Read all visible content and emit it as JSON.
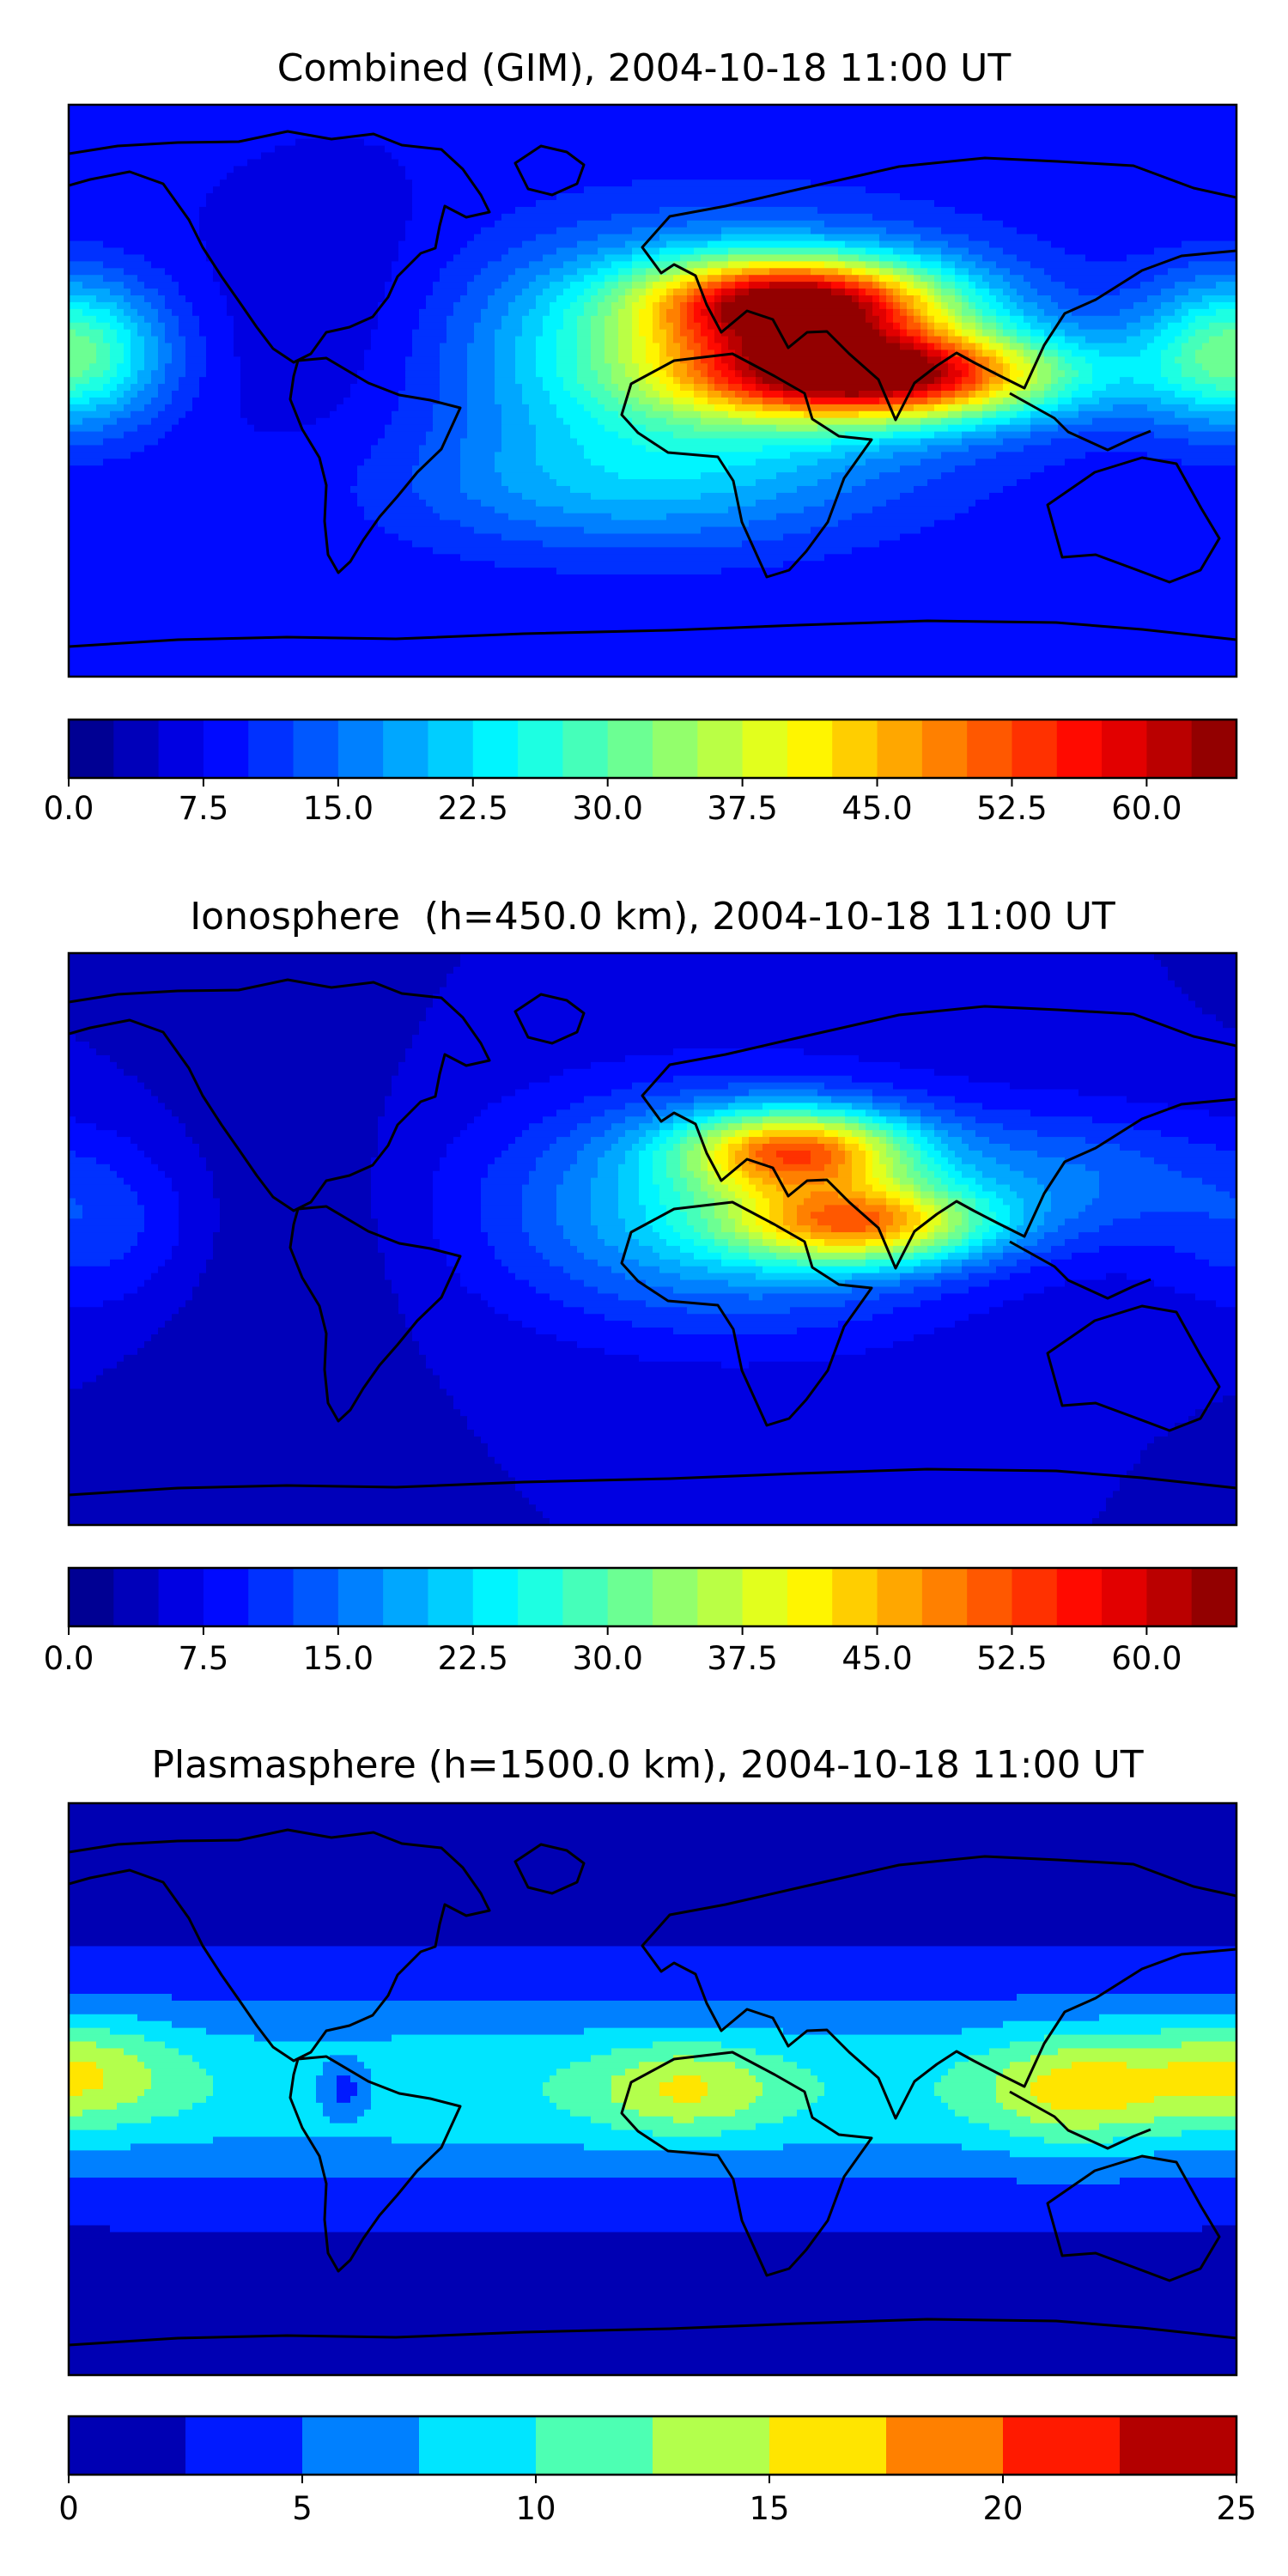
{
  "chart_data": [
    {
      "type": "heatmap",
      "title": "Combined (GIM), 2004-10-18 11:00 UT",
      "colormap": "jet",
      "colorbar": {
        "min": 0,
        "max": 65,
        "step": 2.5,
        "orientation": "horizontal",
        "position": "bottom",
        "tick_labels": [
          "0.0",
          "7.5",
          "15.0",
          "22.5",
          "30.0",
          "37.5",
          "45.0",
          "52.5",
          "60.0"
        ],
        "tick_values": [
          0,
          7.5,
          15,
          22.5,
          30,
          37.5,
          45,
          52.5,
          60
        ]
      },
      "x_range": [
        -180,
        180
      ],
      "y_range": [
        -90,
        90
      ],
      "background_value": 8,
      "features": [
        {
          "lon": 45,
          "lat": 28,
          "amplitude": 44,
          "sigma_lon": 32,
          "sigma_lat": 10
        },
        {
          "lon": 70,
          "lat": 5,
          "amplitude": 48,
          "sigma_lon": 40,
          "sigma_lat": 10
        },
        {
          "lon": 20,
          "lat": 12,
          "amplitude": 22,
          "sigma_lon": 55,
          "sigma_lat": 25
        },
        {
          "lon": -175,
          "lat": 12,
          "amplitude": 12,
          "sigma_lon": 20,
          "sigma_lat": 16
        },
        {
          "lon": 175,
          "lat": 12,
          "amplitude": 12,
          "sigma_lon": 20,
          "sigma_lat": 16
        },
        {
          "lon": -10,
          "lat": -30,
          "amplitude": 9,
          "sigma_lon": 50,
          "sigma_lat": 15
        },
        {
          "lon": -95,
          "lat": 20,
          "amplitude": -4,
          "sigma_lon": 30,
          "sigma_lat": 30
        }
      ]
    },
    {
      "type": "heatmap",
      "title": "Ionosphere  (h=450.0 km), 2004-10-18 11:00 UT",
      "colormap": "jet",
      "colorbar": {
        "min": 0,
        "max": 65,
        "step": 2.5,
        "orientation": "horizontal",
        "position": "bottom",
        "tick_labels": [
          "0.0",
          "7.5",
          "15.0",
          "22.5",
          "30.0",
          "37.5",
          "45.0",
          "52.5",
          "60.0"
        ],
        "tick_values": [
          0,
          7.5,
          15,
          22.5,
          30,
          37.5,
          45,
          52.5,
          60
        ]
      },
      "x_range": [
        -180,
        180
      ],
      "y_range": [
        -90,
        90
      ],
      "background_value": 5,
      "features": [
        {
          "lon": 45,
          "lat": 28,
          "amplitude": 34,
          "sigma_lon": 25,
          "sigma_lat": 9
        },
        {
          "lon": 65,
          "lat": 5,
          "amplitude": 32,
          "sigma_lon": 28,
          "sigma_lat": 9
        },
        {
          "lon": 25,
          "lat": 10,
          "amplitude": 18,
          "sigma_lon": 50,
          "sigma_lat": 25
        },
        {
          "lon": 130,
          "lat": 20,
          "amplitude": 8,
          "sigma_lon": 30,
          "sigma_lat": 15
        },
        {
          "lon": -170,
          "lat": 5,
          "amplitude": 7,
          "sigma_lon": 25,
          "sigma_lat": 20
        },
        {
          "lon": -120,
          "lat": 0,
          "amplitude": -3,
          "sigma_lon": 30,
          "sigma_lat": 40
        }
      ]
    },
    {
      "type": "heatmap",
      "title": "Plasmasphere (h=1500.0 km), 2004-10-18 11:00 UT",
      "colormap": "jet",
      "colorbar": {
        "min": 0,
        "max": 25,
        "step": 2.5,
        "orientation": "horizontal",
        "position": "bottom",
        "tick_labels": [
          "0",
          "5",
          "10",
          "15",
          "20",
          "25"
        ],
        "tick_values": [
          0,
          5,
          10,
          15,
          20,
          25
        ]
      },
      "x_range": [
        -180,
        180
      ],
      "y_range": [
        -90,
        90
      ],
      "background_value": 1.5,
      "features": [
        {
          "lon": 0,
          "lat": 0,
          "amplitude": 8,
          "sigma_lon": 400,
          "sigma_lat": 22
        },
        {
          "lon": -170,
          "lat": 5,
          "amplitude": 4,
          "sigma_lon": 20,
          "sigma_lat": 12
        },
        {
          "lon": 170,
          "lat": 5,
          "amplitude": 4,
          "sigma_lon": 20,
          "sigma_lat": 12
        },
        {
          "lon": 10,
          "lat": 0,
          "amplitude": 6,
          "sigma_lon": 20,
          "sigma_lat": 10
        },
        {
          "lon": 130,
          "lat": 0,
          "amplitude": 7,
          "sigma_lon": 20,
          "sigma_lat": 12
        },
        {
          "lon": -95,
          "lat": 0,
          "amplitude": -5,
          "sigma_lon": 6,
          "sigma_lat": 6
        }
      ]
    }
  ]
}
